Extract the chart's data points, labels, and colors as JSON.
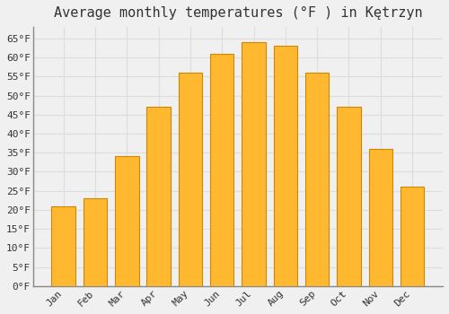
{
  "title": "Average monthly temperatures (°F ) in Kętrzyn",
  "months": [
    "Jan",
    "Feb",
    "Mar",
    "Apr",
    "May",
    "Jun",
    "Jul",
    "Aug",
    "Sep",
    "Oct",
    "Nov",
    "Dec"
  ],
  "values": [
    21,
    23,
    34,
    47,
    56,
    61,
    64,
    63,
    56,
    47,
    36,
    26
  ],
  "bar_color": "#FFA500",
  "bar_color_inner": "#FFB830",
  "bar_edge_color": "#CC8800",
  "background_color": "#F0F0F0",
  "plot_bg_color": "#F0F0F0",
  "grid_color": "#DDDDDD",
  "text_color": "#333333",
  "spine_color": "#888888",
  "ylim": [
    0,
    68
  ],
  "yticks": [
    0,
    5,
    10,
    15,
    20,
    25,
    30,
    35,
    40,
    45,
    50,
    55,
    60,
    65
  ],
  "tick_label_suffix": "°F",
  "title_fontsize": 11,
  "tick_fontsize": 8,
  "font_family": "monospace"
}
